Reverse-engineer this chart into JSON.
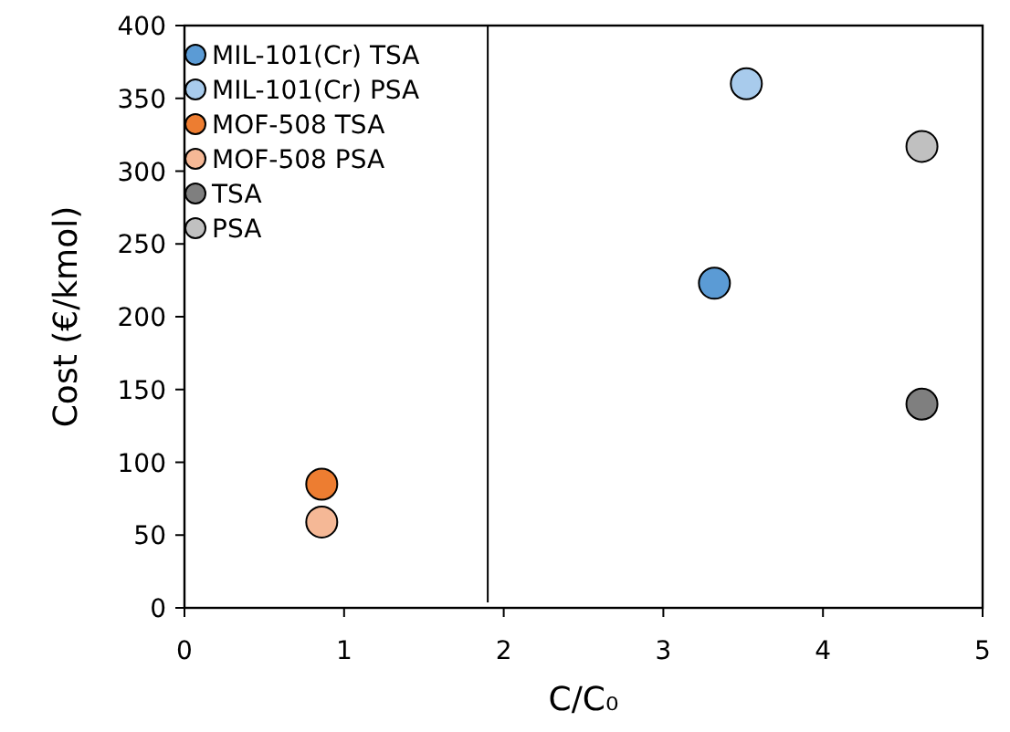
{
  "chart_data": {
    "type": "scatter",
    "xlabel": "C/C₀",
    "ylabel": "Cost (€/kmol)",
    "xlim": [
      0,
      5
    ],
    "xticks": [
      0,
      1,
      2,
      3,
      4,
      5
    ],
    "ylim": [
      0,
      400
    ],
    "yticks": [
      0,
      50,
      100,
      150,
      200,
      250,
      300,
      350,
      400
    ],
    "grid": false,
    "legend": "top left",
    "marker": "circle",
    "ref_lines": [
      {
        "axis": "x",
        "value": 1.9
      }
    ],
    "series": [
      {
        "name": "MIL-101(Cr) TSA",
        "color": "#5b9bd5",
        "x": [
          3.32
        ],
        "values": [
          223
        ]
      },
      {
        "name": "MIL-101(Cr) PSA",
        "color": "#a8cbec",
        "x": [
          3.52
        ],
        "values": [
          360
        ]
      },
      {
        "name": "MOF-508 TSA",
        "color": "#ed7d31",
        "x": [
          0.86
        ],
        "values": [
          85
        ]
      },
      {
        "name": "MOF-508 PSA",
        "color": "#f5b896",
        "x": [
          0.86
        ],
        "values": [
          59
        ]
      },
      {
        "name": "TSA",
        "color": "#7f7f7f",
        "x": [
          4.62
        ],
        "values": [
          140
        ]
      },
      {
        "name": "PSA",
        "color": "#c0c0c0",
        "x": [
          4.62
        ],
        "values": [
          317
        ]
      }
    ]
  }
}
